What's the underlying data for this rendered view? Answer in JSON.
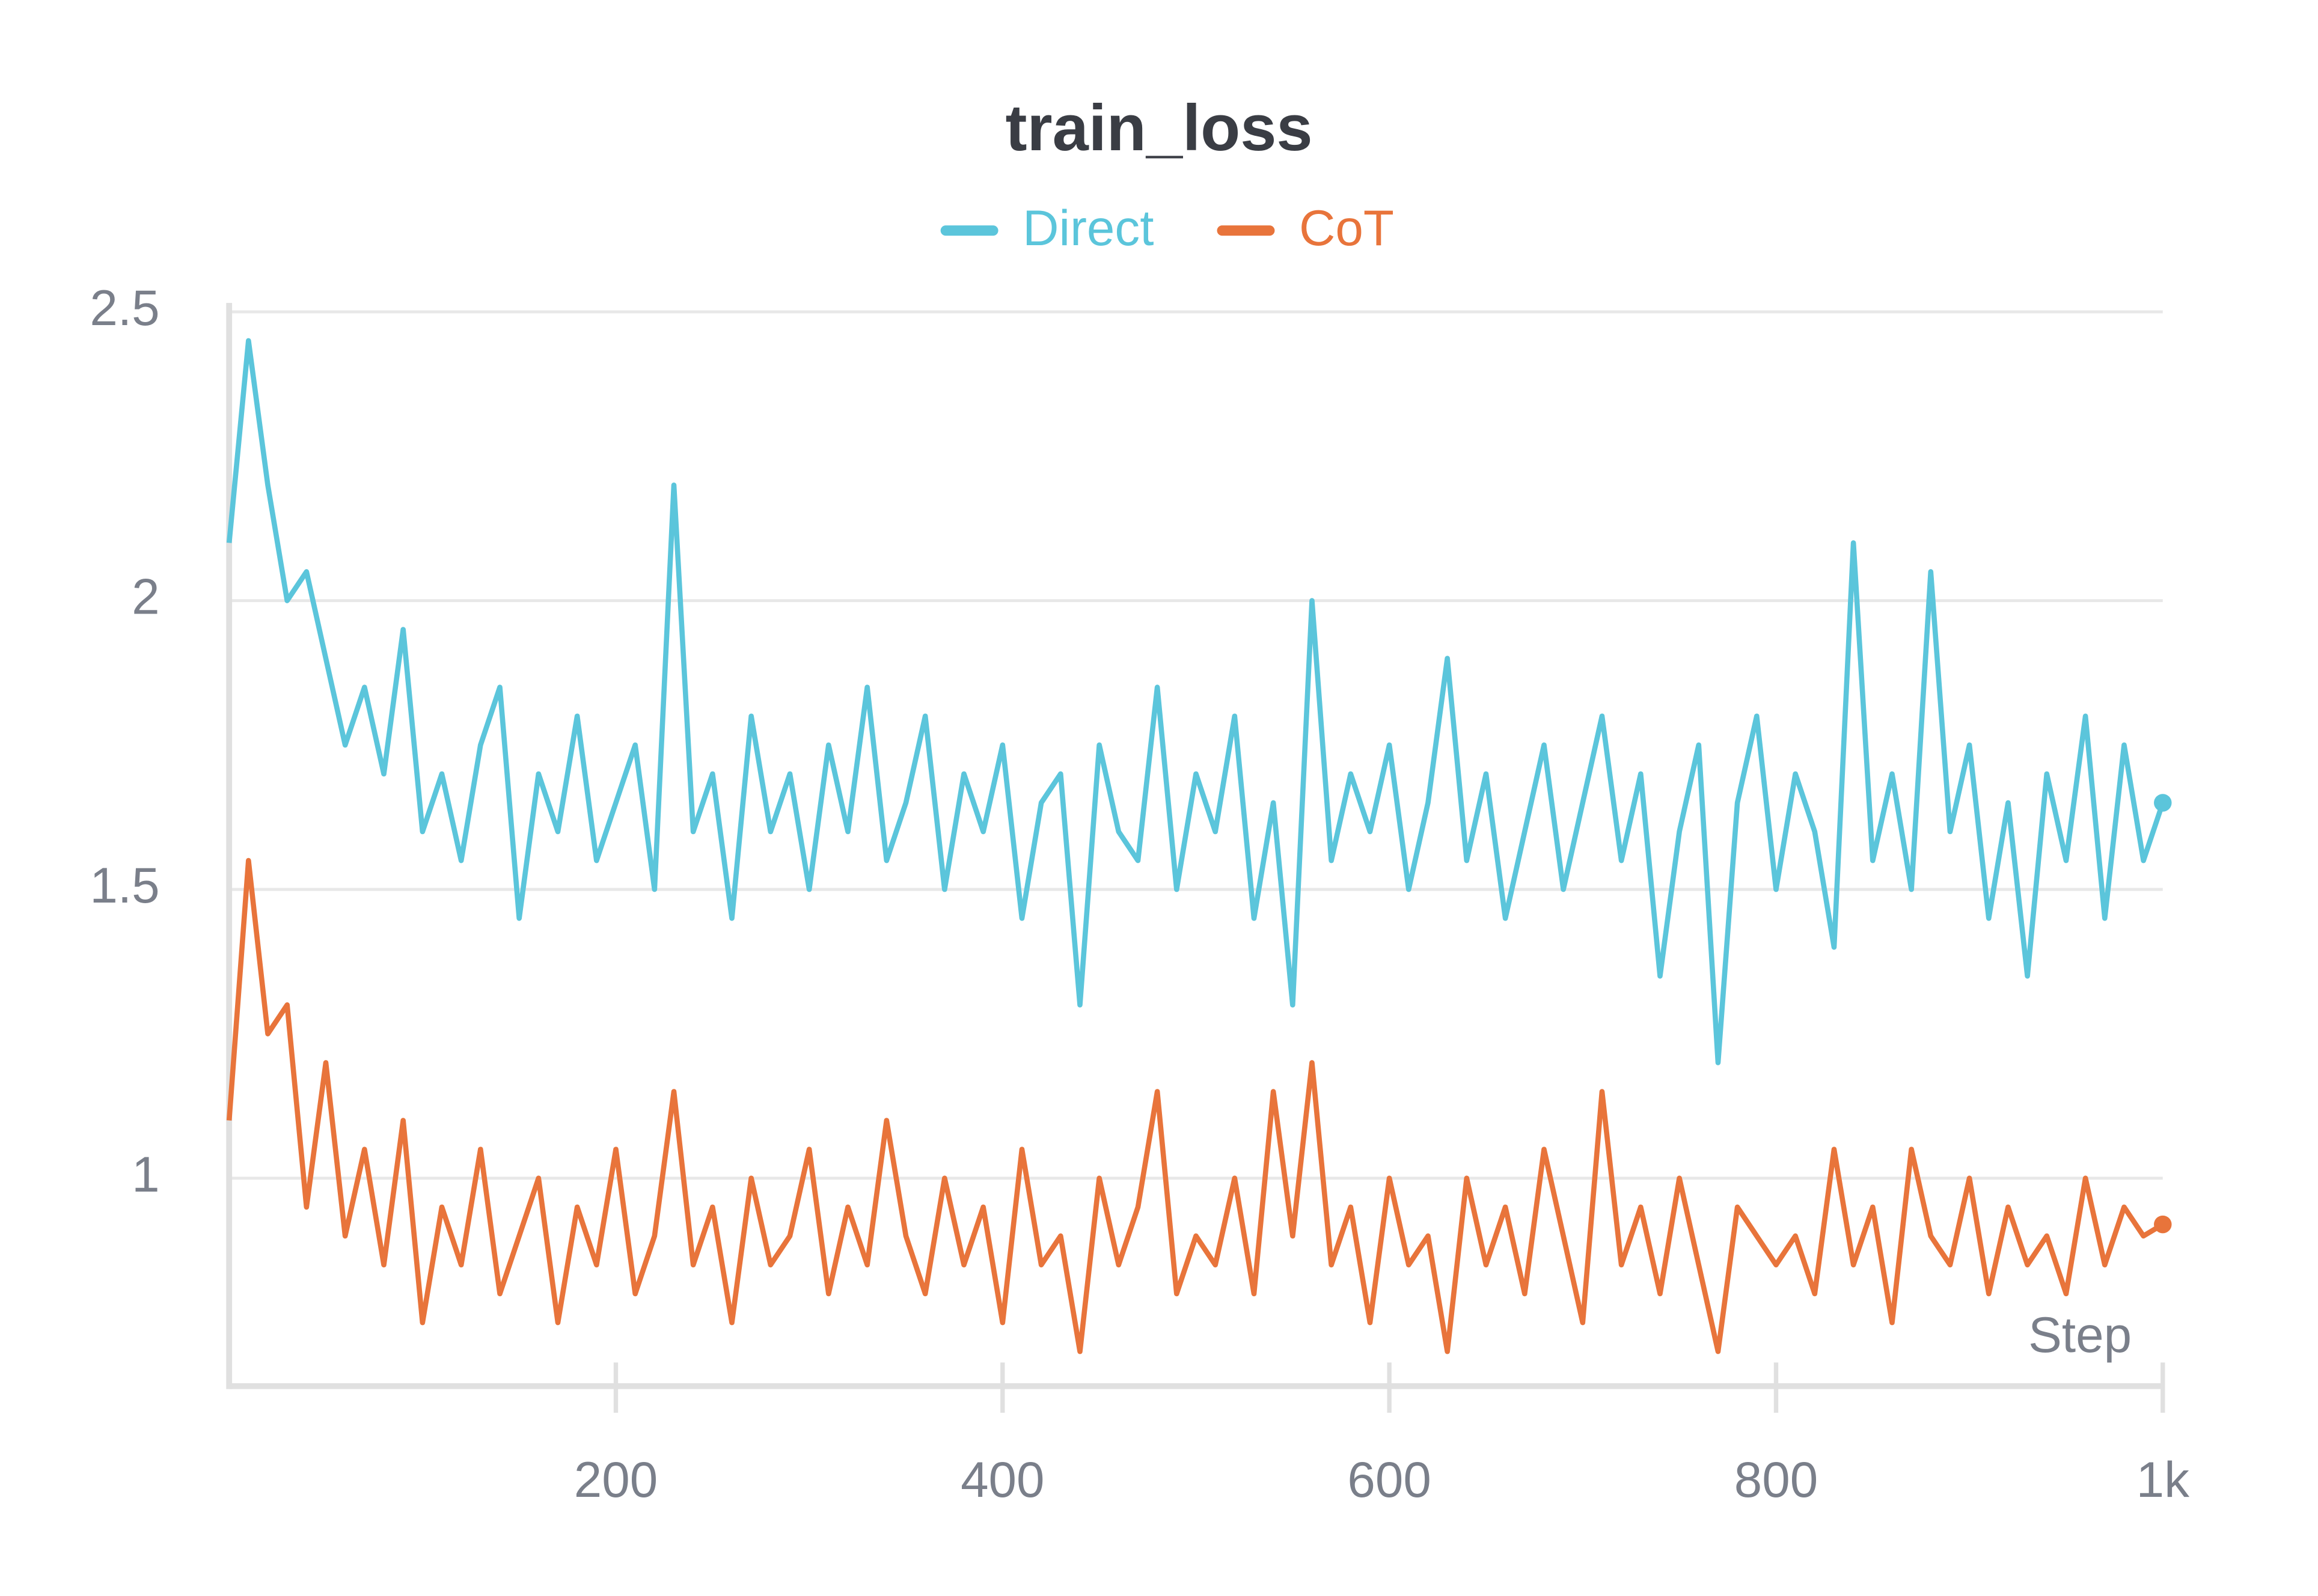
{
  "chart_data": {
    "type": "line",
    "title": "train_loss",
    "x_label": "Step",
    "x": [
      0,
      10,
      20,
      30,
      40,
      50,
      60,
      70,
      80,
      90,
      100,
      110,
      120,
      130,
      140,
      150,
      160,
      170,
      180,
      190,
      200,
      210,
      220,
      230,
      240,
      250,
      260,
      270,
      280,
      290,
      300,
      310,
      320,
      330,
      340,
      350,
      360,
      370,
      380,
      390,
      400,
      410,
      420,
      430,
      440,
      450,
      460,
      470,
      480,
      490,
      500,
      510,
      520,
      530,
      540,
      550,
      560,
      570,
      580,
      590,
      600,
      610,
      620,
      630,
      640,
      650,
      660,
      670,
      680,
      690,
      700,
      710,
      720,
      730,
      740,
      750,
      760,
      770,
      780,
      790,
      800,
      810,
      820,
      830,
      840,
      850,
      860,
      870,
      880,
      890,
      900,
      910,
      920,
      930,
      940,
      950,
      960,
      970,
      980,
      990,
      1000
    ],
    "series": [
      {
        "name": "Direct",
        "color": "#5bc5db",
        "values": [
          2.1,
          2.45,
          2.2,
          2.0,
          2.05,
          1.9,
          1.75,
          1.85,
          1.7,
          1.95,
          1.6,
          1.7,
          1.55,
          1.75,
          1.85,
          1.45,
          1.7,
          1.6,
          1.8,
          1.55,
          1.65,
          1.75,
          1.5,
          2.2,
          1.6,
          1.7,
          1.45,
          1.8,
          1.6,
          1.7,
          1.5,
          1.75,
          1.6,
          1.85,
          1.55,
          1.65,
          1.8,
          1.5,
          1.7,
          1.6,
          1.75,
          1.45,
          1.65,
          1.7,
          1.3,
          1.75,
          1.6,
          1.55,
          1.85,
          1.5,
          1.7,
          1.6,
          1.8,
          1.45,
          1.65,
          1.3,
          2.0,
          1.55,
          1.7,
          1.6,
          1.75,
          1.5,
          1.65,
          1.9,
          1.55,
          1.7,
          1.45,
          1.6,
          1.75,
          1.5,
          1.65,
          1.8,
          1.55,
          1.7,
          1.35,
          1.6,
          1.75,
          1.2,
          1.65,
          1.8,
          1.5,
          1.7,
          1.6,
          1.4,
          2.1,
          1.55,
          1.7,
          1.5,
          2.05,
          1.6,
          1.75,
          1.45,
          1.65,
          1.35,
          1.7,
          1.55,
          1.8,
          1.45,
          1.75,
          1.55,
          1.65
        ]
      },
      {
        "name": "CoT",
        "color": "#e8743b",
        "values": [
          1.1,
          1.55,
          1.25,
          1.3,
          0.95,
          1.2,
          0.9,
          1.05,
          0.85,
          1.1,
          0.75,
          0.95,
          0.85,
          1.05,
          0.8,
          0.9,
          1.0,
          0.75,
          0.95,
          0.85,
          1.05,
          0.8,
          0.9,
          1.15,
          0.85,
          0.95,
          0.75,
          1.0,
          0.85,
          0.9,
          1.05,
          0.8,
          0.95,
          0.85,
          1.1,
          0.9,
          0.8,
          1.0,
          0.85,
          0.95,
          0.75,
          1.05,
          0.85,
          0.9,
          0.7,
          1.0,
          0.85,
          0.95,
          1.15,
          0.8,
          0.9,
          0.85,
          1.0,
          0.8,
          1.15,
          0.9,
          1.2,
          0.85,
          0.95,
          0.75,
          1.0,
          0.85,
          0.9,
          0.7,
          1.0,
          0.85,
          0.95,
          0.8,
          1.05,
          0.9,
          0.75,
          1.15,
          0.85,
          0.95,
          0.8,
          1.0,
          0.85,
          0.7,
          0.95,
          0.9,
          0.85,
          0.9,
          0.8,
          1.05,
          0.85,
          0.95,
          0.75,
          1.05,
          0.9,
          0.85,
          1.0,
          0.8,
          0.95,
          0.85,
          0.9,
          0.8,
          1.0,
          0.85,
          0.95,
          0.9,
          0.92
        ]
      }
    ],
    "xlim": [
      0,
      1000
    ],
    "xticks": [
      200,
      400,
      600,
      800,
      {
        "value": 1000,
        "label": "1k"
      }
    ],
    "ylim": [
      0.64,
      2.5
    ],
    "yticks": [
      1,
      1.5,
      2,
      2.5
    ],
    "grid": true,
    "legend": "top"
  }
}
